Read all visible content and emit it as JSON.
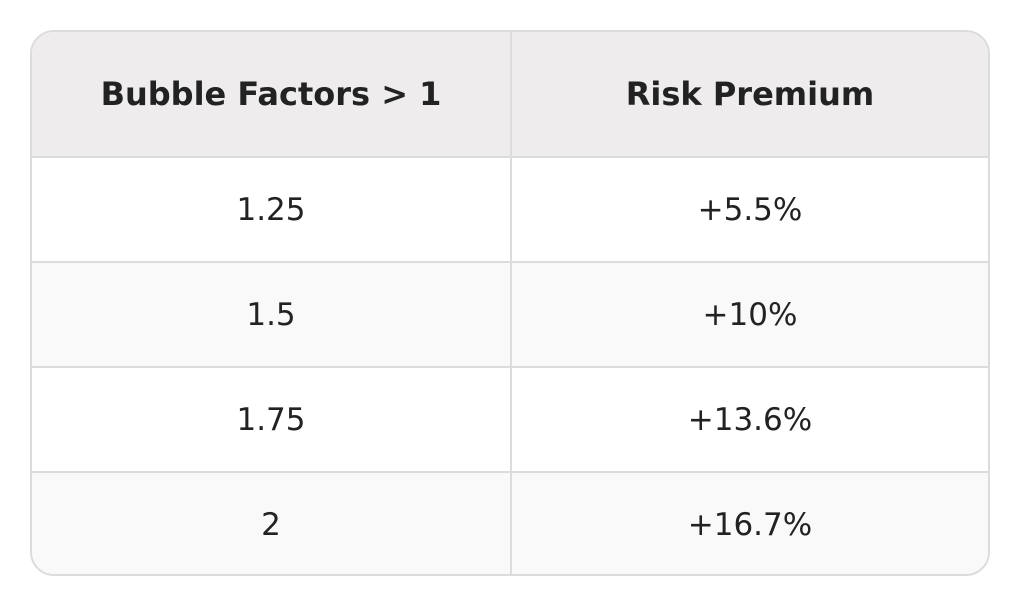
{
  "table": {
    "header": [
      "Bubble Factors > 1",
      "Risk Premium"
    ],
    "rows": [
      [
        "1.25",
        "+5.5%"
      ],
      [
        "1.5",
        "+10%"
      ],
      [
        "1.75",
        "+13.6%"
      ],
      [
        "2",
        "+16.7%"
      ]
    ]
  }
}
